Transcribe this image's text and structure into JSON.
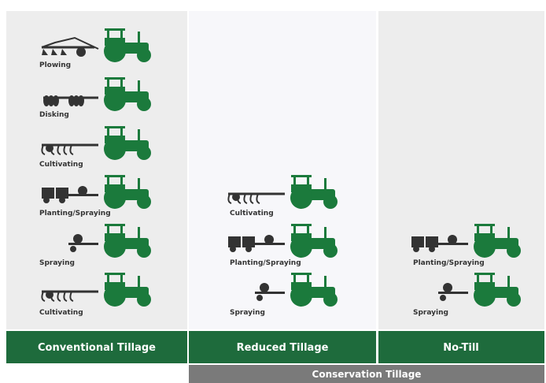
{
  "columns": [
    {
      "label": "Conventional Tillage",
      "operations": [
        "Plowing",
        "Disking",
        "Cultivating",
        "Planting/Spraying",
        "Spraying",
        "Cultivating"
      ]
    },
    {
      "label": "Reduced Tillage",
      "operations": [
        "Cultivating",
        "Planting/Spraying",
        "Spraying"
      ]
    },
    {
      "label": "No-Till",
      "operations": [
        "Planting/Spraying",
        "Spraying"
      ]
    }
  ],
  "footer": {
    "label": "Conservation Tillage"
  }
}
